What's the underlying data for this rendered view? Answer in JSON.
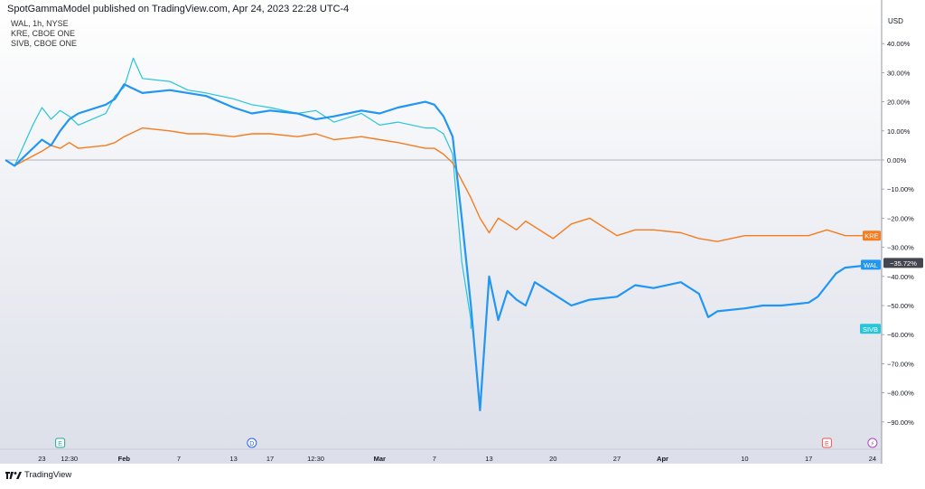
{
  "header": {
    "published_text": "SpotGammaModel published on TradingView.com, Apr 24, 2023 22:28 UTC-4"
  },
  "legend": [
    "WAL, 1h, NYSE",
    "KRE, CBOE ONE",
    "SIVB, CBOE ONE"
  ],
  "footer": {
    "brand": "TradingView",
    "logo_icon": "tradingview-logo-icon"
  },
  "colors": {
    "WAL": "#2196f3",
    "KRE": "#f57c1f",
    "SIVB": "#26c6da",
    "zero_line": "#b2b5be",
    "last_price_badge": "#434651"
  },
  "chart_data": {
    "type": "line",
    "y_unit": "USD",
    "ylim": [
      -100,
      45
    ],
    "y_ticks": [
      40,
      30,
      20,
      10,
      0,
      -10,
      -20,
      -30,
      -40,
      -50,
      -60,
      -70,
      -80,
      -90
    ],
    "y_tick_labels": [
      "40.00%",
      "30.00%",
      "20.00%",
      "10.00%",
      "0.00%",
      "−10.00%",
      "−20.00%",
      "−30.00%",
      "−40.00%",
      "−50.00%",
      "−60.00%",
      "−70.00%",
      "−80.00%",
      "−90.00%"
    ],
    "x_range": [
      "2023-01-19",
      "2023-04-25"
    ],
    "x_ticks": [
      {
        "x": "2023-01-23",
        "label": "23"
      },
      {
        "x": "2023-01-26",
        "label": "12:30"
      },
      {
        "x": "2023-02-01",
        "label": "Feb"
      },
      {
        "x": "2023-02-07",
        "label": "7"
      },
      {
        "x": "2023-02-13",
        "label": "13"
      },
      {
        "x": "2023-02-17",
        "label": "17"
      },
      {
        "x": "2023-02-22",
        "label": "12:30"
      },
      {
        "x": "2023-03-01",
        "label": "Mar"
      },
      {
        "x": "2023-03-07",
        "label": "7"
      },
      {
        "x": "2023-03-13",
        "label": "13"
      },
      {
        "x": "2023-03-20",
        "label": "20"
      },
      {
        "x": "2023-03-27",
        "label": "27"
      },
      {
        "x": "2023-04-01",
        "label": "Apr"
      },
      {
        "x": "2023-04-10",
        "label": "10"
      },
      {
        "x": "2023-04-17",
        "label": "17"
      },
      {
        "x": "2023-04-24",
        "label": "24"
      }
    ],
    "event_markers": [
      {
        "x": "2023-01-25",
        "label": "E",
        "color": "#26a69a"
      },
      {
        "x": "2023-02-15",
        "label": "D",
        "color": "#2962ff"
      },
      {
        "x": "2023-04-19",
        "label": "E",
        "color": "#ef5350"
      },
      {
        "x": "2023-04-24",
        "label": "⚡",
        "color": "#ab47bc"
      }
    ],
    "series": [
      {
        "name": "KRE",
        "last_label": "KRE",
        "x": [
          "2023-01-19",
          "2023-01-20",
          "2023-01-23",
          "2023-01-24",
          "2023-01-25",
          "2023-01-26",
          "2023-01-27",
          "2023-01-30",
          "2023-01-31",
          "2023-02-01",
          "2023-02-03",
          "2023-02-06",
          "2023-02-08",
          "2023-02-10",
          "2023-02-13",
          "2023-02-15",
          "2023-02-17",
          "2023-02-20",
          "2023-02-22",
          "2023-02-24",
          "2023-02-27",
          "2023-03-01",
          "2023-03-03",
          "2023-03-06",
          "2023-03-07",
          "2023-03-08",
          "2023-03-09",
          "2023-03-10",
          "2023-03-11",
          "2023-03-12",
          "2023-03-13",
          "2023-03-14",
          "2023-03-15",
          "2023-03-16",
          "2023-03-17",
          "2023-03-20",
          "2023-03-22",
          "2023-03-24",
          "2023-03-27",
          "2023-03-29",
          "2023-03-31",
          "2023-04-03",
          "2023-04-05",
          "2023-04-07",
          "2023-04-10",
          "2023-04-12",
          "2023-04-14",
          "2023-04-17",
          "2023-04-19",
          "2023-04-21",
          "2023-04-24"
        ],
        "values": [
          0,
          -2,
          3,
          5,
          4,
          6,
          4,
          5,
          6,
          8,
          11,
          10,
          9,
          9,
          8,
          9,
          9,
          8,
          9,
          7,
          8,
          7,
          6,
          4,
          4,
          2,
          -1,
          -7,
          -13,
          -20,
          -25,
          -20,
          -22,
          -24,
          -21,
          -27,
          -22,
          -20,
          -26,
          -24,
          -24,
          -25,
          -27,
          -28,
          -26,
          -26,
          -26,
          -26,
          -24,
          -26,
          -26
        ]
      },
      {
        "name": "WAL",
        "last_label": "WAL",
        "last_value_label": "−35.72%",
        "x": [
          "2023-01-19",
          "2023-01-20",
          "2023-01-23",
          "2023-01-24",
          "2023-01-25",
          "2023-01-26",
          "2023-01-27",
          "2023-01-30",
          "2023-01-31",
          "2023-02-01",
          "2023-02-03",
          "2023-02-06",
          "2023-02-08",
          "2023-02-10",
          "2023-02-13",
          "2023-02-15",
          "2023-02-17",
          "2023-02-20",
          "2023-02-22",
          "2023-02-24",
          "2023-02-27",
          "2023-03-01",
          "2023-03-03",
          "2023-03-06",
          "2023-03-07",
          "2023-03-08",
          "2023-03-09",
          "2023-03-10",
          "2023-03-11",
          "2023-03-12",
          "2023-03-13",
          "2023-03-14",
          "2023-03-15",
          "2023-03-16",
          "2023-03-17",
          "2023-03-18",
          "2023-03-20",
          "2023-03-22",
          "2023-03-24",
          "2023-03-27",
          "2023-03-29",
          "2023-03-31",
          "2023-04-03",
          "2023-04-05",
          "2023-04-06",
          "2023-04-07",
          "2023-04-10",
          "2023-04-12",
          "2023-04-14",
          "2023-04-17",
          "2023-04-18",
          "2023-04-19",
          "2023-04-20",
          "2023-04-21",
          "2023-04-24"
        ],
        "values": [
          0,
          -2,
          7,
          5,
          10,
          14,
          16,
          19,
          21,
          26,
          23,
          24,
          23,
          22,
          18,
          16,
          17,
          16,
          14,
          15,
          17,
          16,
          18,
          20,
          19,
          15,
          8,
          -20,
          -50,
          -86,
          -40,
          -55,
          -45,
          -48,
          -50,
          -42,
          -46,
          -50,
          -48,
          -47,
          -43,
          -44,
          -42,
          -46,
          -54,
          -52,
          -51,
          -50,
          -50,
          -49,
          -47,
          -43,
          -39,
          -37,
          -36
        ]
      },
      {
        "name": "SIVB",
        "last_label": "SIVB",
        "x": [
          "2023-01-19",
          "2023-01-20",
          "2023-01-22",
          "2023-01-23",
          "2023-01-24",
          "2023-01-25",
          "2023-01-26",
          "2023-01-27",
          "2023-01-30",
          "2023-01-31",
          "2023-02-01",
          "2023-02-02",
          "2023-02-03",
          "2023-02-06",
          "2023-02-08",
          "2023-02-10",
          "2023-02-13",
          "2023-02-15",
          "2023-02-17",
          "2023-02-20",
          "2023-02-22",
          "2023-02-24",
          "2023-02-27",
          "2023-03-01",
          "2023-03-03",
          "2023-03-06",
          "2023-03-07",
          "2023-03-08",
          "2023-03-09",
          "2023-03-10",
          "2023-03-11",
          "2023-03-11"
        ],
        "values": [
          0,
          -2,
          12,
          18,
          14,
          17,
          15,
          12,
          16,
          22,
          25,
          35,
          28,
          27,
          24,
          23,
          21,
          19,
          18,
          16,
          17,
          13,
          16,
          12,
          13,
          11,
          11,
          9,
          2,
          -35,
          -55,
          -58
        ]
      }
    ]
  }
}
